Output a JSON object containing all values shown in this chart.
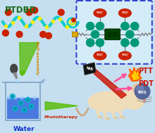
{
  "bg_color": "#c5dff0",
  "title": "PTDBD",
  "title_color": "#1a6b1a",
  "title_fontsize": 8.5,
  "water_label": "Water",
  "water_label_color": "#1133cc",
  "phototherapy_label": "Phototherapy",
  "phototherapy_color": "#cc2200",
  "ptt_label": "PTT",
  "ptt_color": "#cc1100",
  "pdt_label": "PDT",
  "pdt_color": "#cc1100",
  "self_assembly_label": "Self-assembly",
  "self_assembly_color": "#cc8800",
  "nir_label": "NIR",
  "nir_color": "#ffffff",
  "ros_label": "ROS",
  "ros_color": "#ffffff",
  "polymer_wave_color": "#00cccc",
  "polymer_dot_color": "#ffee00",
  "red_dot_color": "#cc2200",
  "box_border_color": "#3344cc",
  "molecule_core_color": "#004400",
  "molecule_side_color": "#009977",
  "molecule_so3_color": "#cc2200",
  "beaker_water_color": "#3366dd",
  "laser_body_color": "#111111",
  "laser_beam_color": "#cc1100",
  "flame_outer": "#ff6600",
  "flame_inner": "#ffcc00",
  "ros_sphere_color": "#556699",
  "ros_highlight": "#7788bb",
  "mouse_body_color": "#f0dcb8",
  "mouse_ear_color": "#e8c8a0",
  "arrow_green": "#55bb00",
  "arrow_pink": "#ff5599",
  "green_cone_color": "#88cc44",
  "dropper_color": "#777777"
}
